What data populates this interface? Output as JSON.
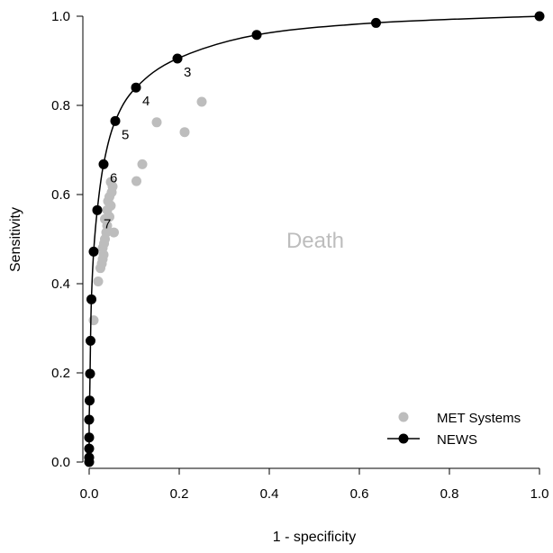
{
  "chart_data": {
    "type": "scatter",
    "title": "",
    "xlabel": "1 - specificity",
    "ylabel": "Sensitivity",
    "xlim": [
      0,
      1
    ],
    "ylim": [
      0,
      1
    ],
    "x_ticks": [
      "0.0",
      "0.2",
      "0.4",
      "0.6",
      "0.8",
      "1.0"
    ],
    "y_ticks": [
      "0.0",
      "0.2",
      "0.4",
      "0.6",
      "0.8",
      "1.0"
    ],
    "grid": false,
    "legend_position": "bottom-right",
    "annotation": "Death",
    "series": [
      {
        "name": "MET Systems",
        "style": "points",
        "color": "#bdbdbd",
        "points": [
          {
            "x": 0.01,
            "y": 0.318
          },
          {
            "x": 0.02,
            "y": 0.405
          },
          {
            "x": 0.025,
            "y": 0.435
          },
          {
            "x": 0.028,
            "y": 0.445
          },
          {
            "x": 0.03,
            "y": 0.455
          },
          {
            "x": 0.032,
            "y": 0.465
          },
          {
            "x": 0.03,
            "y": 0.48
          },
          {
            "x": 0.033,
            "y": 0.49
          },
          {
            "x": 0.035,
            "y": 0.5
          },
          {
            "x": 0.038,
            "y": 0.515
          },
          {
            "x": 0.04,
            "y": 0.53
          },
          {
            "x": 0.035,
            "y": 0.545
          },
          {
            "x": 0.045,
            "y": 0.55
          },
          {
            "x": 0.04,
            "y": 0.565
          },
          {
            "x": 0.048,
            "y": 0.575
          },
          {
            "x": 0.042,
            "y": 0.585
          },
          {
            "x": 0.045,
            "y": 0.595
          },
          {
            "x": 0.05,
            "y": 0.605
          },
          {
            "x": 0.052,
            "y": 0.618
          },
          {
            "x": 0.048,
            "y": 0.628
          },
          {
            "x": 0.055,
            "y": 0.515
          },
          {
            "x": 0.105,
            "y": 0.63
          },
          {
            "x": 0.118,
            "y": 0.668
          },
          {
            "x": 0.15,
            "y": 0.762
          },
          {
            "x": 0.212,
            "y": 0.74
          },
          {
            "x": 0.25,
            "y": 0.808
          }
        ]
      },
      {
        "name": "NEWS",
        "style": "line-points",
        "color": "#000000",
        "points": [
          {
            "x": 0.0,
            "y": 0.0,
            "label": ""
          },
          {
            "x": 0.0,
            "y": 0.01,
            "label": ""
          },
          {
            "x": 0.0,
            "y": 0.03,
            "label": ""
          },
          {
            "x": 0.0,
            "y": 0.055,
            "label": ""
          },
          {
            "x": 0.0,
            "y": 0.095,
            "label": ""
          },
          {
            "x": 0.001,
            "y": 0.138,
            "label": ""
          },
          {
            "x": 0.002,
            "y": 0.198,
            "label": ""
          },
          {
            "x": 0.003,
            "y": 0.272,
            "label": ""
          },
          {
            "x": 0.005,
            "y": 0.365,
            "label": ""
          },
          {
            "x": 0.01,
            "y": 0.472,
            "label": ""
          },
          {
            "x": 0.018,
            "y": 0.565,
            "label": "7"
          },
          {
            "x": 0.032,
            "y": 0.668,
            "label": "6"
          },
          {
            "x": 0.058,
            "y": 0.765,
            "label": "5"
          },
          {
            "x": 0.104,
            "y": 0.84,
            "label": "4"
          },
          {
            "x": 0.196,
            "y": 0.905,
            "label": "3"
          },
          {
            "x": 0.372,
            "y": 0.958,
            "label": ""
          },
          {
            "x": 0.637,
            "y": 0.985,
            "label": ""
          },
          {
            "x": 1.0,
            "y": 1.0,
            "label": ""
          }
        ]
      }
    ]
  }
}
